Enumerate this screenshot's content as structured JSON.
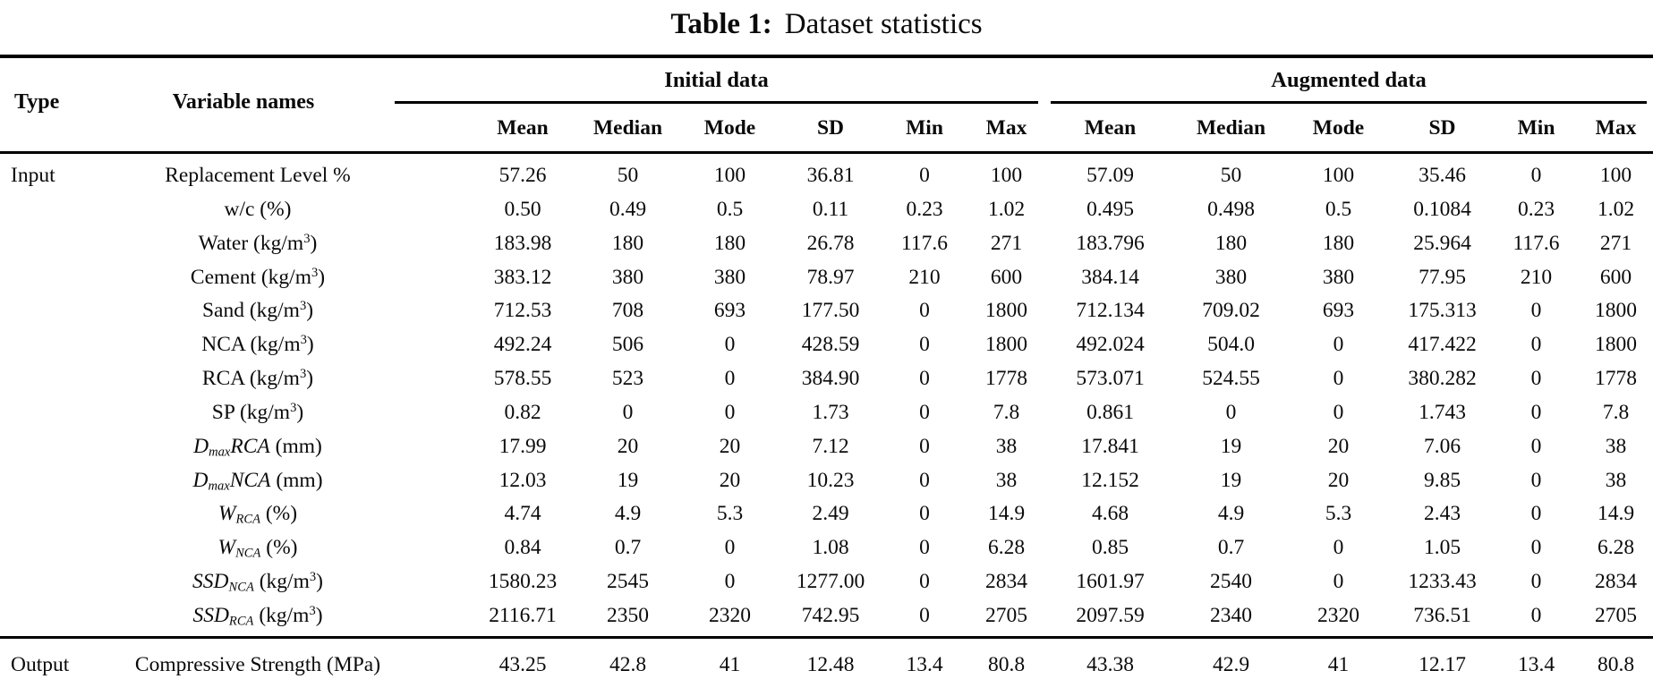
{
  "title": {
    "label": "Table 1:",
    "caption": "Dataset statistics"
  },
  "table": {
    "col_headers": {
      "type": "Type",
      "variable": "Variable names"
    },
    "groups": [
      {
        "label": "Initial data"
      },
      {
        "label": "Augmented data"
      }
    ],
    "stat_headers": [
      "Mean",
      "Median",
      "Mode",
      "SD",
      "Min",
      "Max"
    ],
    "rows": [
      {
        "type": "Input",
        "variable": "Replacement Level %",
        "initial": [
          "57.26",
          "50",
          "100",
          "36.81",
          "0",
          "100"
        ],
        "augmented": [
          "57.09",
          "50",
          "100",
          "35.46",
          "0",
          "100"
        ]
      },
      {
        "type": "",
        "variable": "w/c (%)",
        "initial": [
          "0.50",
          "0.49",
          "0.5",
          "0.11",
          "0.23",
          "1.02"
        ],
        "augmented": [
          "0.495",
          "0.498",
          "0.5",
          "0.1084",
          "0.23",
          "1.02"
        ]
      },
      {
        "type": "",
        "variable": "Water (kg/m^{3})",
        "initial": [
          "183.98",
          "180",
          "180",
          "26.78",
          "117.6",
          "271"
        ],
        "augmented": [
          "183.796",
          "180",
          "180",
          "25.964",
          "117.6",
          "271"
        ]
      },
      {
        "type": "",
        "variable": "Cement (kg/m^{3})",
        "initial": [
          "383.12",
          "380",
          "380",
          "78.97",
          "210",
          "600"
        ],
        "augmented": [
          "384.14",
          "380",
          "380",
          "77.95",
          "210",
          "600"
        ]
      },
      {
        "type": "",
        "variable": "Sand (kg/m^{3})",
        "initial": [
          "712.53",
          "708",
          "693",
          "177.50",
          "0",
          "1800"
        ],
        "augmented": [
          "712.134",
          "709.02",
          "693",
          "175.313",
          "0",
          "1800"
        ]
      },
      {
        "type": "",
        "variable": "NCA (kg/m^{3})",
        "initial": [
          "492.24",
          "506",
          "0",
          "428.59",
          "0",
          "1800"
        ],
        "augmented": [
          "492.024",
          "504.0",
          "0",
          "417.422",
          "0",
          "1800"
        ]
      },
      {
        "type": "",
        "variable": "RCA (kg/m^{3})",
        "initial": [
          "578.55",
          "523",
          "0",
          "384.90",
          "0",
          "1778"
        ],
        "augmented": [
          "573.071",
          "524.55",
          "0",
          "380.282",
          "0",
          "1778"
        ]
      },
      {
        "type": "",
        "variable": "SP (kg/m^{3})",
        "initial": [
          "0.82",
          "0",
          "0",
          "1.73",
          "0",
          "7.8"
        ],
        "augmented": [
          "0.861",
          "0",
          "0",
          "1.743",
          "0",
          "7.8"
        ]
      },
      {
        "type": "",
        "variable": "*D*_{*max*}*RCA* (mm)",
        "initial": [
          "17.99",
          "20",
          "20",
          "7.12",
          "0",
          "38"
        ],
        "augmented": [
          "17.841",
          "19",
          "20",
          "7.06",
          "0",
          "38"
        ]
      },
      {
        "type": "",
        "variable": "*D*_{*max*}*NCA* (mm)",
        "initial": [
          "12.03",
          "19",
          "20",
          "10.23",
          "0",
          "38"
        ],
        "augmented": [
          "12.152",
          "19",
          "20",
          "9.85",
          "0",
          "38"
        ]
      },
      {
        "type": "",
        "variable": "*W*_{*RCA*} (%)",
        "initial": [
          "4.74",
          "4.9",
          "5.3",
          "2.49",
          "0",
          "14.9"
        ],
        "augmented": [
          "4.68",
          "4.9",
          "5.3",
          "2.43",
          "0",
          "14.9"
        ]
      },
      {
        "type": "",
        "variable": "*W*_{*NCA*} (%)",
        "initial": [
          "0.84",
          "0.7",
          "0",
          "1.08",
          "0",
          "6.28"
        ],
        "augmented": [
          "0.85",
          "0.7",
          "0",
          "1.05",
          "0",
          "6.28"
        ]
      },
      {
        "type": "",
        "variable": "*SSD*_{*NCA*} (kg/m^{3})",
        "initial": [
          "1580.23",
          "2545",
          "0",
          "1277.00",
          "0",
          "2834"
        ],
        "augmented": [
          "1601.97",
          "2540",
          "0",
          "1233.43",
          "0",
          "2834"
        ]
      },
      {
        "type": "",
        "variable": "*SSD*_{*RCA*} (kg/m^{3})",
        "initial": [
          "2116.71",
          "2350",
          "2320",
          "742.95",
          "0",
          "2705"
        ],
        "augmented": [
          "2097.59",
          "2340",
          "2320",
          "736.51",
          "0",
          "2705"
        ]
      }
    ],
    "output_row": {
      "type": "Output",
      "variable": "Compressive Strength (MPa)",
      "initial": [
        "43.25",
        "42.8",
        "41",
        "12.48",
        "13.4",
        "80.8"
      ],
      "augmented": [
        "43.38",
        "42.9",
        "41",
        "12.17",
        "13.4",
        "80.8"
      ]
    }
  }
}
